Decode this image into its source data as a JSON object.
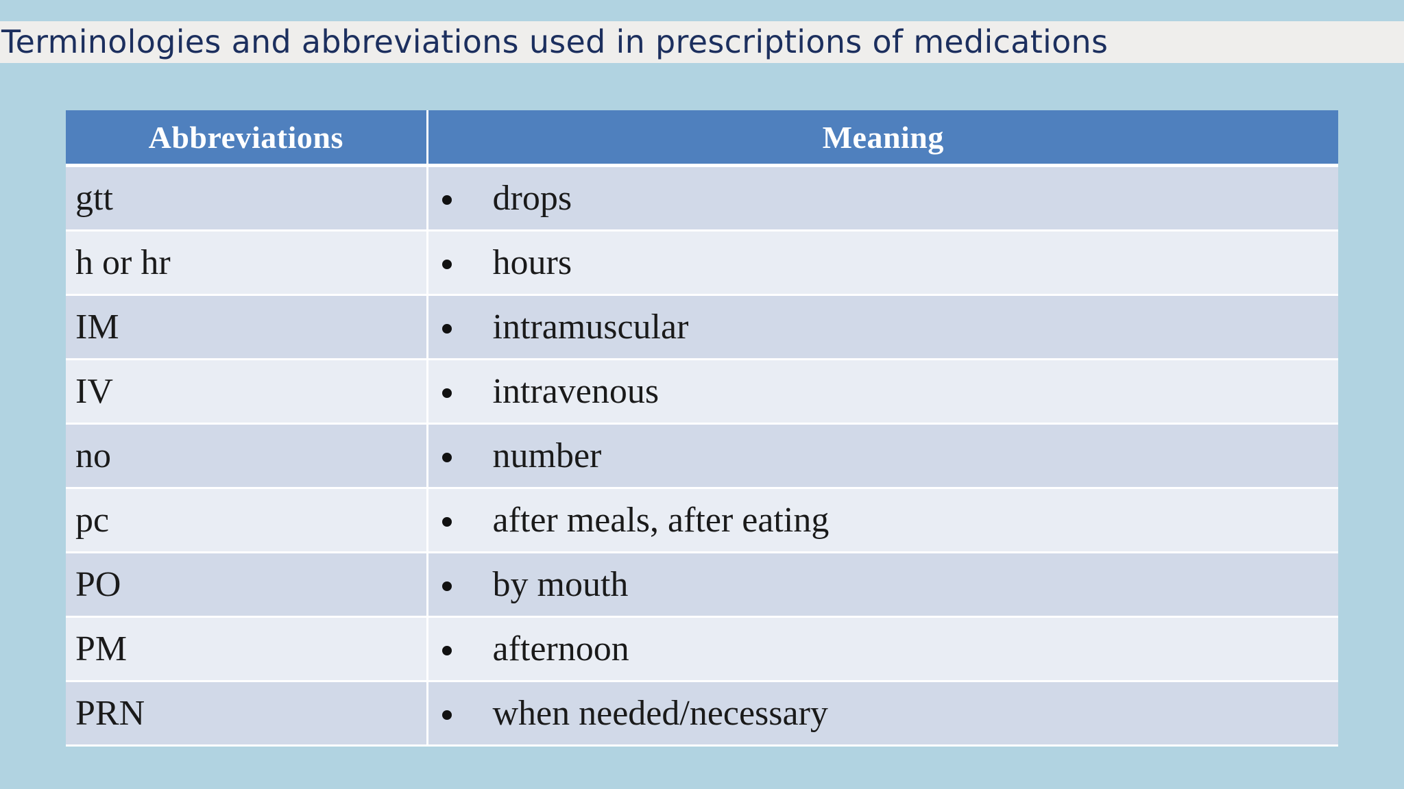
{
  "title": "Terminologies and abbreviations used in prescriptions of medications",
  "table": {
    "headers": {
      "abbreviation": "Abbreviations",
      "meaning": "Meaning"
    },
    "rows": [
      {
        "abbr": "gtt",
        "meaning": "drops"
      },
      {
        "abbr": "h or hr",
        "meaning": "hours"
      },
      {
        "abbr": "IM",
        "meaning": "intramuscular"
      },
      {
        "abbr": "IV",
        "meaning": "intravenous"
      },
      {
        "abbr": "no",
        "meaning": "number"
      },
      {
        "abbr": "pc",
        "meaning": "after meals, after eating"
      },
      {
        "abbr": "PO",
        "meaning": "by mouth"
      },
      {
        "abbr": "PM",
        "meaning": "afternoon"
      },
      {
        "abbr": "PRN",
        "meaning": "when needed/necessary"
      }
    ]
  },
  "colors": {
    "background": "#b1d3e1",
    "title_bar": "#efeeec",
    "title_text": "#1c2f5e",
    "header_fill": "#4f80be",
    "row_odd": "#d1d9e8",
    "row_even": "#e9edf4"
  },
  "icons": {
    "list_marker": "bullet-icon"
  }
}
